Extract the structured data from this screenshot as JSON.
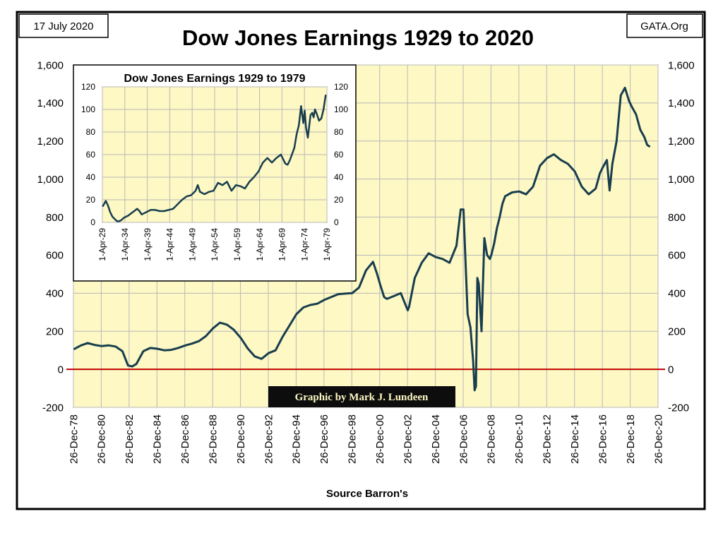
{
  "date_label": "17  July 2020",
  "brand_label": "GATA.Org",
  "credit_label": "Graphic by Mark J. Lundeen",
  "colors": {
    "plot_bg": "#fdf8c4",
    "series": "#183d4e",
    "zero_line": "#c00000",
    "grid": "#b9b9b9",
    "credit_bg": "#0d0d0d",
    "credit_text": "#fdf8c4"
  },
  "chart_data": [
    {
      "type": "line",
      "title": "Dow Jones Earnings 1929 to 2020",
      "xlabel": "Source Barron's",
      "ylabel": "",
      "ylim": [
        -200,
        1600
      ],
      "yticks": [
        -200,
        0,
        200,
        400,
        600,
        800,
        1000,
        1200,
        1400,
        1600
      ],
      "ytick_labels": [
        "-200",
        "0",
        "200",
        "400",
        "600",
        "800",
        "1,000",
        "1,200",
        "1,400",
        "1,600"
      ],
      "xlim": [
        1978.98,
        2020.98
      ],
      "xticks": [
        1978.98,
        1980.98,
        1982.98,
        1984.98,
        1986.98,
        1988.98,
        1990.98,
        1992.98,
        1994.98,
        1996.98,
        1998.98,
        2000.98,
        2002.98,
        2004.98,
        2006.98,
        2008.98,
        2010.98,
        2012.98,
        2014.98,
        2016.98,
        2018.98,
        2020.98
      ],
      "xtick_labels": [
        "26-Dec-78",
        "26-Dec-80",
        "26-Dec-82",
        "26-Dec-84",
        "26-Dec-86",
        "26-Dec-88",
        "26-Dec-90",
        "26-Dec-92",
        "26-Dec-94",
        "26-Dec-96",
        "26-Dec-98",
        "26-Dec-00",
        "26-Dec-02",
        "26-Dec-04",
        "26-Dec-06",
        "26-Dec-08",
        "26-Dec-10",
        "26-Dec-12",
        "26-Dec-14",
        "26-Dec-16",
        "26-Dec-18",
        "26-Dec-20"
      ],
      "grid": true,
      "secondary_y_axis": true,
      "reference_line": 0,
      "series": [
        {
          "x": [
            1979.0,
            1979.5,
            1980.0,
            1980.5,
            1981.0,
            1981.5,
            1982.0,
            1982.5,
            1982.9,
            1983.2,
            1983.5,
            1984.0,
            1984.5,
            1985.0,
            1985.5,
            1986.0,
            1986.5,
            1987.0,
            1987.5,
            1988.0,
            1988.5,
            1989.0,
            1989.5,
            1990.0,
            1990.5,
            1991.0,
            1991.5,
            1992.0,
            1992.5,
            1993.0,
            1993.5,
            1994.0,
            1994.5,
            1995.0,
            1995.5,
            1996.0,
            1996.5,
            1997.0,
            1997.5,
            1998.0,
            1998.5,
            1999.0,
            1999.5,
            2000.0,
            2000.5,
            2000.8,
            2001.0,
            2001.3,
            2001.5,
            2002.0,
            2002.5,
            2003.0,
            2003.1,
            2003.5,
            2004.0,
            2004.5,
            2005.0,
            2005.5,
            2006.0,
            2006.5,
            2006.8,
            2007.0,
            2007.3,
            2007.5,
            2007.7,
            2007.8,
            2007.9,
            2008.0,
            2008.1,
            2008.3,
            2008.5,
            2008.7,
            2008.9,
            2009.0,
            2009.2,
            2009.4,
            2009.6,
            2009.8,
            2010.0,
            2010.5,
            2011.0,
            2011.5,
            2012.0,
            2012.5,
            2013.0,
            2013.5,
            2014.0,
            2014.5,
            2015.0,
            2015.5,
            2016.0,
            2016.5,
            2016.8,
            2017.0,
            2017.3,
            2017.5,
            2017.7,
            2018.0,
            2018.3,
            2018.6,
            2018.9,
            2019.1,
            2019.4,
            2019.7,
            2020.0,
            2020.2,
            2020.4
          ],
          "y": [
            105,
            125,
            138,
            128,
            122,
            126,
            120,
            95,
            20,
            15,
            28,
            95,
            112,
            108,
            100,
            102,
            112,
            125,
            135,
            148,
            175,
            215,
            245,
            235,
            208,
            165,
            110,
            68,
            55,
            85,
            100,
            170,
            230,
            290,
            325,
            338,
            345,
            365,
            380,
            395,
            398,
            400,
            430,
            520,
            565,
            500,
            450,
            380,
            370,
            385,
            400,
            310,
            330,
            480,
            560,
            610,
            590,
            580,
            560,
            650,
            840,
            840,
            290,
            220,
            40,
            -110,
            -90,
            480,
            450,
            200,
            690,
            600,
            580,
            600,
            660,
            740,
            800,
            870,
            910,
            930,
            935,
            920,
            960,
            1070,
            1110,
            1130,
            1100,
            1080,
            1040,
            960,
            920,
            950,
            1030,
            1060,
            1100,
            940,
            1080,
            1200,
            1440,
            1480,
            1410,
            1380,
            1340,
            1260,
            1220,
            1180,
            1170
          ]
        }
      ]
    },
    {
      "type": "line",
      "title": "Dow Jones Earnings 1929 to 1979",
      "xlabel": "",
      "ylabel": "",
      "ylim": [
        0,
        120
      ],
      "yticks": [
        0,
        20,
        40,
        60,
        80,
        100,
        120
      ],
      "ytick_labels": [
        "0",
        "20",
        "40",
        "60",
        "80",
        "100",
        "120"
      ],
      "xlim": [
        1929.25,
        1979.25
      ],
      "xticks": [
        1929.25,
        1934.25,
        1939.25,
        1944.25,
        1949.25,
        1954.25,
        1959.25,
        1964.25,
        1969.25,
        1974.25,
        1979.25
      ],
      "xtick_labels": [
        "1-Apr-29",
        "1-Apr-34",
        "1-Apr-39",
        "1-Apr-44",
        "1-Apr-49",
        "1-Apr-54",
        "1-Apr-59",
        "1-Apr-64",
        "1-Apr-69",
        "1-Apr-74",
        "1-Apr-79"
      ],
      "grid": true,
      "secondary_y_axis": true,
      "series": [
        {
          "x": [
            1929.3,
            1930.0,
            1930.5,
            1931.0,
            1931.5,
            1932.0,
            1932.5,
            1933.0,
            1933.5,
            1934.0,
            1935.0,
            1936.0,
            1937.0,
            1937.5,
            1938.0,
            1938.5,
            1939.0,
            1940.0,
            1941.0,
            1942.0,
            1943.0,
            1944.0,
            1945.0,
            1946.0,
            1947.0,
            1948.0,
            1949.0,
            1950.0,
            1950.5,
            1951.0,
            1952.0,
            1953.0,
            1954.0,
            1955.0,
            1956.0,
            1957.0,
            1958.0,
            1959.0,
            1960.0,
            1961.0,
            1962.0,
            1963.0,
            1964.0,
            1965.0,
            1966.0,
            1967.0,
            1968.0,
            1969.0,
            1970.0,
            1970.5,
            1971.0,
            1972.0,
            1972.5,
            1973.0,
            1973.5,
            1974.0,
            1974.3,
            1974.6,
            1975.0,
            1975.3,
            1975.6,
            1976.0,
            1976.3,
            1976.6,
            1977.0,
            1977.5,
            1978.0,
            1978.5,
            1979.0
          ],
          "y": [
            14,
            19,
            15,
            9,
            5,
            3,
            1,
            1,
            2,
            4,
            6,
            9,
            12,
            10,
            7,
            8,
            9,
            11,
            11,
            10,
            10,
            11,
            12,
            16,
            20,
            23,
            24,
            28,
            33,
            27,
            25,
            27,
            28,
            35,
            33,
            36,
            28,
            33,
            32,
            30,
            36,
            40,
            45,
            53,
            57,
            53,
            57,
            60,
            52,
            51,
            55,
            66,
            78,
            86,
            103,
            88,
            99,
            84,
            75,
            85,
            95,
            97,
            93,
            100,
            96,
            90,
            92,
            100,
            113
          ]
        }
      ]
    }
  ]
}
